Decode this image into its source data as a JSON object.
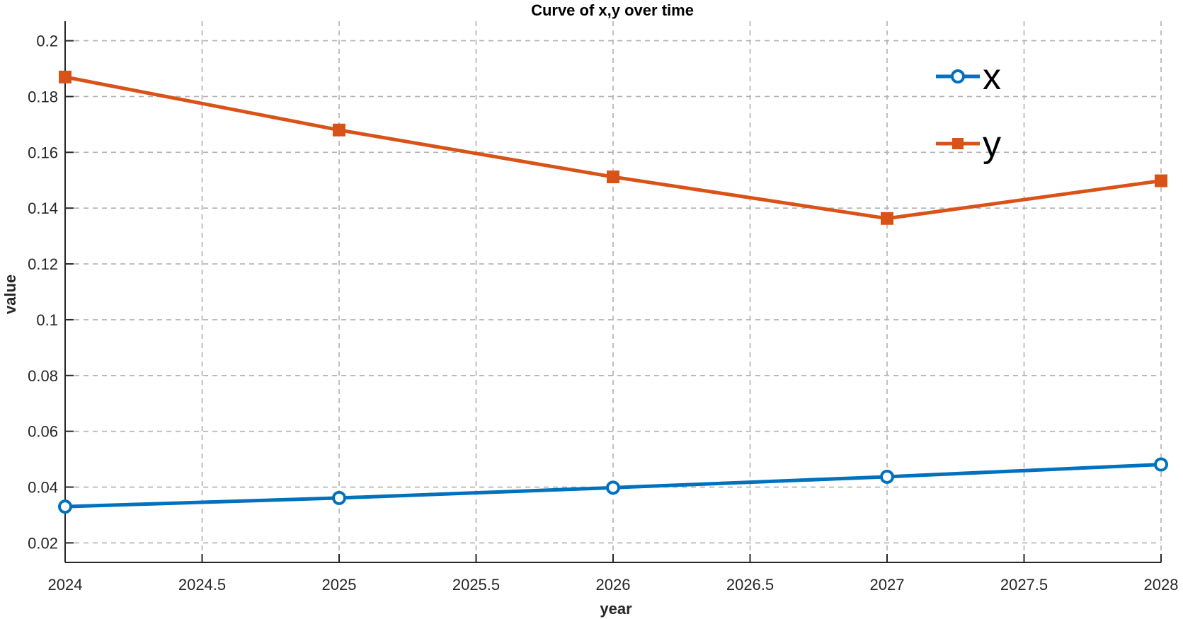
{
  "chart_data": {
    "type": "line",
    "title": "Curve of x,y over time",
    "xlabel": "year",
    "ylabel": "value",
    "xlim": [
      2024,
      2028
    ],
    "ylim": [
      0.013,
      0.207
    ],
    "x_ticks": [
      2024,
      2024.5,
      2025,
      2025.5,
      2026,
      2026.5,
      2027,
      2027.5,
      2028
    ],
    "y_ticks": [
      0.02,
      0.04,
      0.06,
      0.08,
      0.1,
      0.12,
      0.14,
      0.16,
      0.18,
      0.2
    ],
    "x_tick_labels": [
      "2024",
      "2024.5",
      "2025",
      "2025.5",
      "2026",
      "2026.5",
      "2027",
      "2027.5",
      "2028"
    ],
    "y_tick_labels": [
      "0.02",
      "0.04",
      "0.06",
      "0.08",
      "0.1",
      "0.12",
      "0.14",
      "0.16",
      "0.18",
      "0.2"
    ],
    "x": [
      2024,
      2025,
      2026,
      2027,
      2028
    ],
    "series": [
      {
        "name": "x",
        "marker": "circle",
        "color": "#0072BD",
        "values": [
          0.033,
          0.0361,
          0.0398,
          0.0437,
          0.0481
        ]
      },
      {
        "name": "y",
        "marker": "square",
        "color": "#D95319",
        "values": [
          0.187,
          0.168,
          0.1512,
          0.1363,
          0.1498
        ]
      }
    ],
    "grid": true,
    "legend_position": "top-right"
  }
}
